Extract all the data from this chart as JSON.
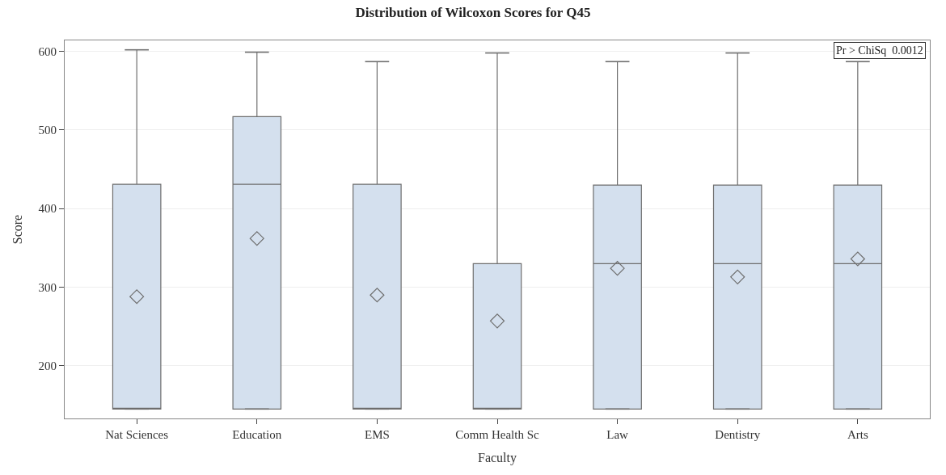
{
  "chart_data": {
    "type": "box",
    "title": "Distribution of Wilcoxon Scores for Q45",
    "xlabel": "Faculty",
    "ylabel": "Score",
    "categories": [
      "Nat Sciences",
      "Education",
      "EMS",
      "Comm Health Sc",
      "Law",
      "Dentistry",
      "Arts"
    ],
    "boxes": [
      {
        "low": 145,
        "q1": 145,
        "median": 145,
        "q3": 431,
        "high": 602,
        "mean": 288
      },
      {
        "low": 145,
        "q1": 145,
        "median": 431,
        "q3": 517,
        "high": 599,
        "mean": 362
      },
      {
        "low": 145,
        "q1": 145,
        "median": 145,
        "q3": 431,
        "high": 587,
        "mean": 290
      },
      {
        "low": 145,
        "q1": 145,
        "median": 145,
        "q3": 330,
        "high": 598,
        "mean": 257
      },
      {
        "low": 145,
        "q1": 145,
        "median": 330,
        "q3": 430,
        "high": 587,
        "mean": 324
      },
      {
        "low": 145,
        "q1": 145,
        "median": 330,
        "q3": 430,
        "high": 598,
        "mean": 313
      },
      {
        "low": 145,
        "q1": 145,
        "median": 330,
        "q3": 430,
        "high": 587,
        "mean": 336
      }
    ],
    "color": "#d4e0ee",
    "ylim": [
      133,
      614
    ],
    "yticks": [
      200,
      300,
      400,
      500,
      600
    ],
    "grid": "y",
    "marker": "diamond",
    "annotations": [
      "Pr > ChiSq  0.0012"
    ]
  }
}
